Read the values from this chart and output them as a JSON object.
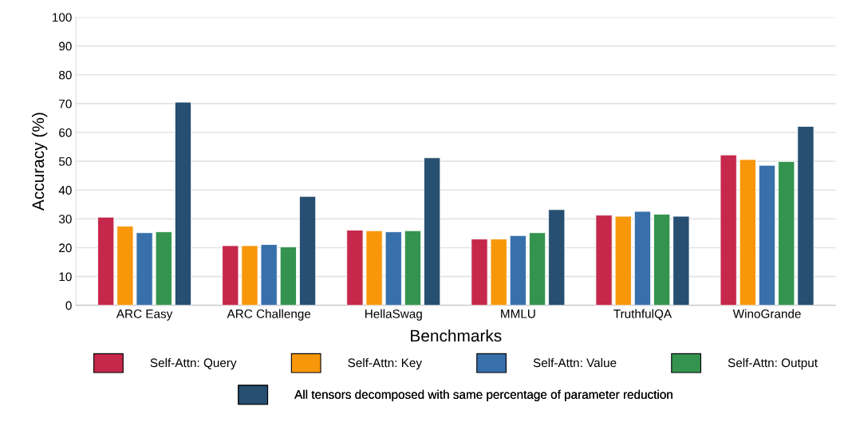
{
  "chart_data": {
    "type": "bar",
    "xlabel": "Benchmarks",
    "ylabel": "Accuracy (%)",
    "categories": [
      "ARC Easy",
      "ARC Challenge",
      "HellaSwag",
      "MMLU",
      "TruthfulQA",
      "WinoGrande"
    ],
    "series": [
      {
        "name": "Self-Attn: Query",
        "color": "#c5284b",
        "values": [
          30.6,
          20.7,
          26.1,
          23.0,
          31.3,
          52.2
        ]
      },
      {
        "name": "Self-Attn: Key",
        "color": "#f8970a",
        "values": [
          27.5,
          20.7,
          25.9,
          23.0,
          30.9,
          50.6
        ]
      },
      {
        "name": "Self-Attn: Value",
        "color": "#3870ab",
        "values": [
          25.2,
          21.1,
          25.5,
          24.2,
          32.6,
          48.6
        ]
      },
      {
        "name": "Self-Attn: Output",
        "color": "#34944f",
        "values": [
          25.5,
          20.3,
          25.9,
          25.2,
          31.6,
          49.9
        ]
      },
      {
        "name": "All tensors decomposed with same percentage of parameter reduction",
        "color": "#264f72",
        "values": [
          70.5,
          37.8,
          51.2,
          33.2,
          30.9,
          62.1
        ]
      }
    ],
    "ylim": [
      0,
      100
    ],
    "yticks": [
      0,
      10,
      20,
      30,
      40,
      50,
      60,
      70,
      80,
      90,
      100
    ],
    "grid": "y",
    "legend": "bottom"
  }
}
